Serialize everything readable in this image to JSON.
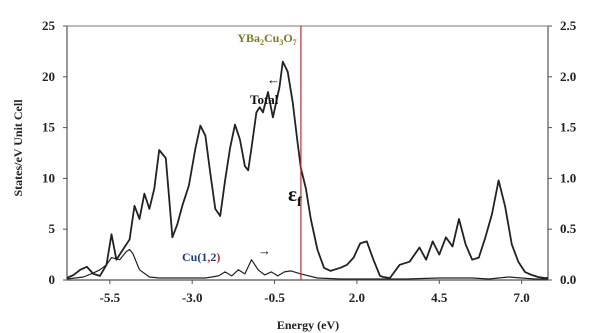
{
  "chart_data": {
    "type": "line",
    "title": "YBa2Cu3O7",
    "xlabel": "Energy (eV)",
    "ylabel": "States/eV Unit Cell",
    "xlim": [
      -6.8,
      7.8
    ],
    "ylim": [
      0,
      25
    ],
    "y2lim": [
      0,
      2.5
    ],
    "xticks": [
      "-5.5",
      "-3.0",
      "-0.5",
      "2.0",
      "4.5",
      "7.0"
    ],
    "xtick_values": [
      -5.5,
      -3.0,
      -0.5,
      2.0,
      4.5,
      7.0
    ],
    "yticks": [
      "0",
      "5",
      "10",
      "15",
      "20",
      "25"
    ],
    "y2ticks": [
      "0.0",
      "0.5",
      "1.0",
      "1.5",
      "2.0",
      "2.5"
    ],
    "grid": false,
    "fermi_level": {
      "x": 0.3,
      "label": "ε",
      "subscript": "f",
      "color": "#cc2a2a"
    },
    "annotations": [
      {
        "text": "Total",
        "arrow": "←"
      },
      {
        "text": "Cu(1,2)",
        "arrow": "→"
      }
    ],
    "series": [
      {
        "name": "Total",
        "axis": "left",
        "color": "#222222",
        "x": [
          -6.8,
          -6.6,
          -6.4,
          -6.2,
          -6.0,
          -5.8,
          -5.6,
          -5.45,
          -5.3,
          -5.1,
          -4.9,
          -4.75,
          -4.6,
          -4.45,
          -4.3,
          -4.15,
          -4.0,
          -3.8,
          -3.6,
          -3.45,
          -3.3,
          -3.1,
          -2.9,
          -2.75,
          -2.6,
          -2.45,
          -2.3,
          -2.15,
          -2.0,
          -1.85,
          -1.7,
          -1.55,
          -1.4,
          -1.3,
          -1.2,
          -1.05,
          -0.95,
          -0.85,
          -0.7,
          -0.55,
          -0.45,
          -0.35,
          -0.25,
          -0.1,
          0.05,
          0.2,
          0.3,
          0.45,
          0.6,
          0.8,
          1.0,
          1.2,
          1.3,
          1.5,
          1.7,
          1.9,
          2.1,
          2.3,
          2.5,
          2.7,
          2.8,
          3.0,
          3.3,
          3.6,
          3.9,
          4.1,
          4.3,
          4.5,
          4.7,
          4.9,
          5.1,
          5.3,
          5.5,
          5.7,
          5.9,
          6.1,
          6.3,
          6.5,
          6.7,
          6.9,
          7.1,
          7.3,
          7.5,
          7.7,
          7.8
        ],
        "y": [
          0.2,
          0.5,
          1.0,
          1.3,
          0.6,
          0.4,
          1.5,
          4.5,
          2.0,
          3.0,
          4.0,
          7.3,
          6.0,
          8.5,
          7.0,
          9.0,
          12.8,
          12.0,
          4.2,
          5.5,
          7.3,
          9.3,
          13.0,
          15.2,
          14.2,
          10.5,
          7.0,
          6.3,
          9.8,
          13.0,
          15.3,
          13.8,
          11.2,
          10.8,
          13.0,
          16.5,
          17.0,
          16.5,
          18.5,
          16.0,
          17.5,
          19.0,
          21.5,
          20.5,
          17.5,
          13.5,
          11.0,
          9.0,
          6.0,
          3.0,
          1.2,
          0.9,
          1.0,
          1.2,
          1.5,
          2.2,
          3.6,
          3.8,
          2.0,
          0.4,
          0.3,
          0.2,
          1.5,
          1.8,
          3.2,
          2.0,
          3.8,
          2.5,
          4.2,
          3.3,
          6.0,
          3.5,
          2.0,
          2.2,
          4.2,
          6.5,
          9.8,
          7.2,
          3.5,
          1.8,
          0.8,
          0.5,
          0.3,
          0.2,
          0.2
        ]
      },
      {
        "name": "Cu(1,2)",
        "axis": "right",
        "color": "#222222",
        "x": [
          -6.8,
          -6.3,
          -6.0,
          -5.8,
          -5.6,
          -5.45,
          -5.2,
          -5.0,
          -4.9,
          -4.8,
          -4.6,
          -4.3,
          -4.0,
          -3.5,
          -3.0,
          -2.6,
          -2.2,
          -2.0,
          -1.8,
          -1.6,
          -1.4,
          -1.2,
          -1.0,
          -0.8,
          -0.6,
          -0.4,
          -0.2,
          0.0,
          0.3,
          0.8,
          1.5,
          2.5,
          3.5,
          4.5,
          5.5,
          6.0,
          6.6,
          7.0,
          7.4,
          7.8
        ],
        "y": [
          0.01,
          0.03,
          0.07,
          0.1,
          0.15,
          0.22,
          0.2,
          0.28,
          0.3,
          0.26,
          0.1,
          0.03,
          0.02,
          0.02,
          0.02,
          0.02,
          0.04,
          0.08,
          0.04,
          0.1,
          0.06,
          0.2,
          0.1,
          0.05,
          0.08,
          0.04,
          0.08,
          0.09,
          0.06,
          0.02,
          0.01,
          0.01,
          0.01,
          0.02,
          0.02,
          0.01,
          0.03,
          0.02,
          0.01,
          0.01
        ]
      }
    ]
  }
}
